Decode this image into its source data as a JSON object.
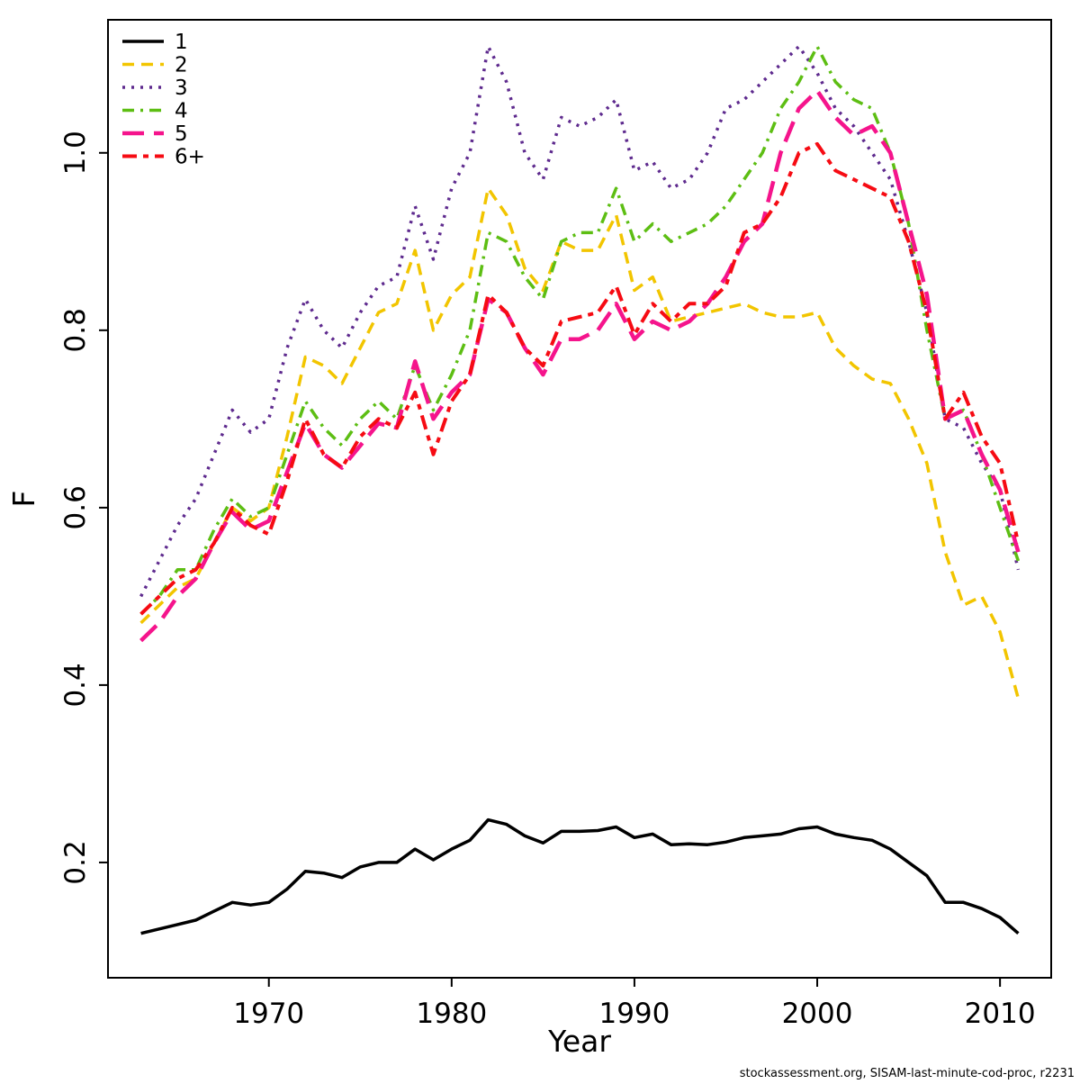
{
  "figure": {
    "xlabel": "Year",
    "ylabel": "F",
    "footer": "stockassessment.org, SISAM-last-minute-cod-proc, r2231"
  },
  "chart_data": {
    "type": "line",
    "title": "",
    "xlabel": "Year",
    "ylabel": "F",
    "legend_position": "top-left",
    "grid": false,
    "xlim": [
      1961.2,
      2012.8
    ],
    "ylim": [
      0.07,
      1.15
    ],
    "x_ticks": [
      1970,
      1980,
      1990,
      2000,
      2010
    ],
    "y_ticks": [
      0.2,
      0.4,
      0.6,
      0.8,
      1.0
    ],
    "x": [
      1963,
      1964,
      1965,
      1966,
      1967,
      1968,
      1969,
      1970,
      1971,
      1972,
      1973,
      1974,
      1975,
      1976,
      1977,
      1978,
      1979,
      1980,
      1981,
      1982,
      1983,
      1984,
      1985,
      1986,
      1987,
      1988,
      1989,
      1990,
      1991,
      1992,
      1993,
      1994,
      1995,
      1996,
      1997,
      1998,
      1999,
      2000,
      2001,
      2002,
      2003,
      2004,
      2005,
      2006,
      2007,
      2008,
      2009,
      2010,
      2011
    ],
    "series": [
      {
        "name": "1",
        "color": "#000000",
        "dash": "solid",
        "width": 3.5,
        "values": [
          0.12,
          0.125,
          0.13,
          0.135,
          0.145,
          0.155,
          0.152,
          0.155,
          0.17,
          0.19,
          0.188,
          0.183,
          0.195,
          0.2,
          0.2,
          0.215,
          0.203,
          0.215,
          0.225,
          0.248,
          0.243,
          0.23,
          0.222,
          0.235,
          0.235,
          0.236,
          0.24,
          0.228,
          0.232,
          0.22,
          0.221,
          0.22,
          0.223,
          0.228,
          0.23,
          0.232,
          0.238,
          0.24,
          0.232,
          0.228,
          0.225,
          0.215,
          0.2,
          0.185,
          0.155,
          0.155,
          0.148,
          0.138,
          0.12
        ]
      },
      {
        "name": "2",
        "color": "#F2C500",
        "dash": "13,8",
        "width": 3.5,
        "values": [
          0.47,
          0.49,
          0.51,
          0.52,
          0.56,
          0.6,
          0.585,
          0.6,
          0.68,
          0.77,
          0.76,
          0.74,
          0.78,
          0.82,
          0.83,
          0.89,
          0.8,
          0.84,
          0.86,
          0.96,
          0.93,
          0.87,
          0.845,
          0.9,
          0.89,
          0.89,
          0.93,
          0.845,
          0.86,
          0.81,
          0.815,
          0.82,
          0.825,
          0.83,
          0.82,
          0.815,
          0.815,
          0.82,
          0.78,
          0.76,
          0.745,
          0.74,
          0.7,
          0.65,
          0.55,
          0.49,
          0.5,
          0.46,
          0.385
        ]
      },
      {
        "name": "3",
        "color": "#5E2A8E",
        "dash": "3,7",
        "width": 3.5,
        "values": [
          0.5,
          0.54,
          0.58,
          0.61,
          0.66,
          0.71,
          0.685,
          0.7,
          0.78,
          0.835,
          0.8,
          0.78,
          0.82,
          0.85,
          0.86,
          0.94,
          0.88,
          0.96,
          1.0,
          1.12,
          1.08,
          1.0,
          0.97,
          1.04,
          1.03,
          1.04,
          1.06,
          0.98,
          0.99,
          0.96,
          0.97,
          1.0,
          1.05,
          1.06,
          1.08,
          1.1,
          1.12,
          1.09,
          1.05,
          1.03,
          1.0,
          0.97,
          0.9,
          0.82,
          0.7,
          0.69,
          0.65,
          0.62,
          0.53
        ]
      },
      {
        "name": "4",
        "color": "#5DBE13",
        "dash": "13,7,3,7",
        "width": 3.5,
        "values": [
          0.48,
          0.5,
          0.53,
          0.53,
          0.575,
          0.61,
          0.59,
          0.6,
          0.66,
          0.72,
          0.69,
          0.67,
          0.7,
          0.72,
          0.7,
          0.76,
          0.71,
          0.75,
          0.8,
          0.91,
          0.9,
          0.86,
          0.835,
          0.9,
          0.91,
          0.91,
          0.96,
          0.9,
          0.92,
          0.9,
          0.91,
          0.92,
          0.94,
          0.97,
          1.0,
          1.05,
          1.08,
          1.12,
          1.08,
          1.06,
          1.05,
          1.0,
          0.92,
          0.8,
          0.7,
          0.71,
          0.66,
          0.6,
          0.54
        ]
      },
      {
        "name": "5",
        "color": "#F5148C",
        "dash": "24,11",
        "width": 4.5,
        "values": [
          0.45,
          0.47,
          0.5,
          0.52,
          0.56,
          0.595,
          0.575,
          0.585,
          0.64,
          0.695,
          0.66,
          0.645,
          0.67,
          0.695,
          0.69,
          0.765,
          0.7,
          0.73,
          0.75,
          0.835,
          0.82,
          0.78,
          0.75,
          0.79,
          0.79,
          0.8,
          0.83,
          0.79,
          0.81,
          0.8,
          0.81,
          0.83,
          0.86,
          0.9,
          0.92,
          1.0,
          1.05,
          1.07,
          1.04,
          1.02,
          1.03,
          1.0,
          0.92,
          0.84,
          0.7,
          0.71,
          0.66,
          0.62,
          0.55
        ]
      },
      {
        "name": "6+",
        "color": "#F60B13",
        "dash": "16,7,6,7",
        "width": 4,
        "values": [
          0.48,
          0.5,
          0.52,
          0.53,
          0.56,
          0.6,
          0.58,
          0.57,
          0.63,
          0.7,
          0.66,
          0.645,
          0.68,
          0.7,
          0.69,
          0.73,
          0.66,
          0.72,
          0.75,
          0.84,
          0.82,
          0.78,
          0.76,
          0.81,
          0.815,
          0.82,
          0.85,
          0.795,
          0.83,
          0.81,
          0.83,
          0.83,
          0.85,
          0.91,
          0.92,
          0.95,
          1.0,
          1.01,
          0.98,
          0.97,
          0.96,
          0.95,
          0.9,
          0.82,
          0.7,
          0.73,
          0.68,
          0.65,
          0.56
        ]
      }
    ]
  }
}
